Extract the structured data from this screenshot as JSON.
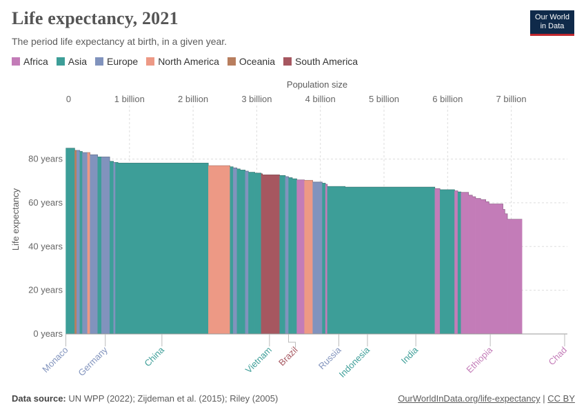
{
  "header": {
    "title": "Life expectancy, 2021",
    "subtitle": "The period life expectancy at birth, in a given year."
  },
  "logo": {
    "line1": "Our World",
    "line2": "in Data"
  },
  "legend": [
    {
      "label": "Africa",
      "color": "#c37cb8"
    },
    {
      "label": "Asia",
      "color": "#3d9e98"
    },
    {
      "label": "Europe",
      "color": "#8193bd"
    },
    {
      "label": "North America",
      "color": "#ed9985"
    },
    {
      "label": "Oceania",
      "color": "#b87e5e"
    },
    {
      "label": "South America",
      "color": "#a65760"
    }
  ],
  "chart_data": {
    "type": "area",
    "title": "Life expectancy, 2021",
    "subtitle": "The period life expectancy at birth, in a given year.",
    "xlabel": "Population size",
    "ylabel": "Life expectancy",
    "xlim": [
      0,
      7.85
    ],
    "ylim": [
      0,
      95
    ],
    "x_ticks": [
      {
        "value": 0,
        "label": "0"
      },
      {
        "value": 1,
        "label": "1 billion"
      },
      {
        "value": 2,
        "label": "2 billion"
      },
      {
        "value": 3,
        "label": "3 billion"
      },
      {
        "value": 4,
        "label": "4 billion"
      },
      {
        "value": 5,
        "label": "5 billion"
      },
      {
        "value": 6,
        "label": "6 billion"
      },
      {
        "value": 7,
        "label": "7 billion"
      }
    ],
    "y_ticks": [
      {
        "value": 0,
        "label": "0 years"
      },
      {
        "value": 20,
        "label": "20 years"
      },
      {
        "value": 40,
        "label": "40 years"
      },
      {
        "value": 60,
        "label": "60 years"
      },
      {
        "value": 80,
        "label": "80 years"
      }
    ],
    "grid": true,
    "legend_position": "top-left",
    "x_unit": "billion people",
    "segments": [
      {
        "region": "Asia",
        "pop": 0.14,
        "value": 85
      },
      {
        "region": "Oceania",
        "pop": 0.03,
        "value": 84
      },
      {
        "region": "Europe",
        "pop": 0.05,
        "value": 84
      },
      {
        "region": "Asia",
        "pop": 0.04,
        "value": 83.5
      },
      {
        "region": "Europe",
        "pop": 0.08,
        "value": 83
      },
      {
        "region": "North America",
        "pop": 0.04,
        "value": 83
      },
      {
        "region": "Europe",
        "pop": 0.12,
        "value": 82
      },
      {
        "region": "Asia",
        "pop": 0.06,
        "value": 81
      },
      {
        "region": "Europe",
        "pop": 0.13,
        "value": 81
      },
      {
        "region": "Asia",
        "pop": 0.06,
        "value": 79
      },
      {
        "region": "Europe",
        "pop": 0.03,
        "value": 78.5
      },
      {
        "region": "Asia",
        "pop": 0.04,
        "value": 78.5
      },
      {
        "region": "Asia",
        "pop": 1.42,
        "value": 78.2
      },
      {
        "region": "North America",
        "pop": 0.34,
        "value": 77
      },
      {
        "region": "Asia",
        "pop": 0.05,
        "value": 76.5
      },
      {
        "region": "Europe",
        "pop": 0.06,
        "value": 76
      },
      {
        "region": "Asia",
        "pop": 0.05,
        "value": 75.5
      },
      {
        "region": "Asia",
        "pop": 0.08,
        "value": 75
      },
      {
        "region": "Europe",
        "pop": 0.05,
        "value": 74.5
      },
      {
        "region": "Asia",
        "pop": 0.1,
        "value": 74
      },
      {
        "region": "Asia",
        "pop": 0.1,
        "value": 73.6
      },
      {
        "region": "South America",
        "pop": 0.02,
        "value": 73.3
      },
      {
        "region": "South America",
        "pop": 0.27,
        "value": 72.8
      },
      {
        "region": "Asia",
        "pop": 0.09,
        "value": 72.5
      },
      {
        "region": "Europe",
        "pop": 0.05,
        "value": 72
      },
      {
        "region": "Asia",
        "pop": 0.06,
        "value": 71.5
      },
      {
        "region": "Asia",
        "pop": 0.07,
        "value": 71
      },
      {
        "region": "Africa",
        "pop": 0.12,
        "value": 70.5
      },
      {
        "region": "North America",
        "pop": 0.13,
        "value": 70.3
      },
      {
        "region": "Europe",
        "pop": 0.15,
        "value": 69.5
      },
      {
        "region": "Asia",
        "pop": 0.05,
        "value": 69
      },
      {
        "region": "Africa",
        "pop": 0.03,
        "value": 68.5
      },
      {
        "region": "Asia",
        "pop": 0.28,
        "value": 67.5
      },
      {
        "region": "Asia",
        "pop": 1.41,
        "value": 67.2
      },
      {
        "region": "Africa",
        "pop": 0.08,
        "value": 66.5
      },
      {
        "region": "Asia",
        "pop": 0.23,
        "value": 66
      },
      {
        "region": "Africa",
        "pop": 0.05,
        "value": 65.5
      },
      {
        "region": "Asia",
        "pop": 0.05,
        "value": 65
      },
      {
        "region": "Africa",
        "pop": 0.12,
        "value": 64.8
      },
      {
        "region": "Africa",
        "pop": 0.06,
        "value": 63.5
      },
      {
        "region": "Africa",
        "pop": 0.05,
        "value": 62.8
      },
      {
        "region": "Africa",
        "pop": 0.08,
        "value": 62
      },
      {
        "region": "Africa",
        "pop": 0.08,
        "value": 61.5
      },
      {
        "region": "Africa",
        "pop": 0.05,
        "value": 60.5
      },
      {
        "region": "Africa",
        "pop": 0.22,
        "value": 59.5
      },
      {
        "region": "Africa",
        "pop": 0.03,
        "value": 57
      },
      {
        "region": "Africa",
        "pop": 0.04,
        "value": 55
      },
      {
        "region": "Africa",
        "pop": 0.23,
        "value": 52.5
      }
    ],
    "annotations": [
      {
        "label": "Monaco",
        "region": "Europe",
        "pop_at": 0.0
      },
      {
        "label": "Germany",
        "region": "Europe",
        "pop_at": 0.62
      },
      {
        "label": "China",
        "region": "Asia",
        "pop_at": 1.51
      },
      {
        "label": "Vietnam",
        "region": "Asia",
        "pop_at": 3.2
      },
      {
        "label": "Brazil",
        "region": "South America",
        "pop_at": 3.5
      },
      {
        "label": "Russia",
        "region": "Europe",
        "pop_at": 4.29
      },
      {
        "label": "Indonesia",
        "region": "Asia",
        "pop_at": 4.74
      },
      {
        "label": "India",
        "region": "Asia",
        "pop_at": 5.5
      },
      {
        "label": "Ethiopia",
        "region": "Africa",
        "pop_at": 6.67
      },
      {
        "label": "Chad",
        "region": "Africa",
        "pop_at": 7.84
      }
    ]
  },
  "footer": {
    "source_label": "Data source:",
    "source_text": "UN WPP (2022); Zijdeman et al. (2015); Riley (2005)",
    "link": "OurWorldInData.org/life-expectancy",
    "separator": "|",
    "license": "CC BY"
  }
}
